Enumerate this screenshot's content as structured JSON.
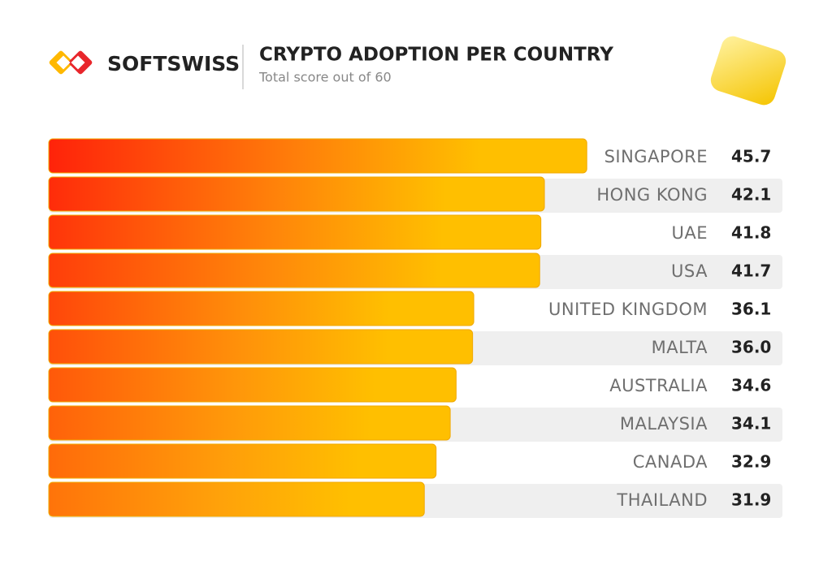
{
  "brand": "SOFTSWISS",
  "chart_data": {
    "type": "hbar",
    "title": "CRYPTO ADOPTION PER COUNTRY",
    "subtitle": "Total score out of 60",
    "categories": [
      "SINGAPORE",
      "HONG KONG",
      "UAE",
      "USA",
      "UNITED KINGDOM",
      "MALTA",
      "AUSTRALIA",
      "MALAYSIA",
      "CANADA",
      "THAILAND"
    ],
    "values": [
      45.7,
      42.1,
      41.8,
      41.7,
      36.1,
      36.0,
      34.6,
      34.1,
      32.9,
      31.9
    ],
    "value_labels": [
      "45.7",
      "42.1",
      "41.8",
      "41.7",
      "36.1",
      "36.0",
      "34.6",
      "34.1",
      "32.9",
      "31.9"
    ],
    "color": "#ffbf00"
  }
}
